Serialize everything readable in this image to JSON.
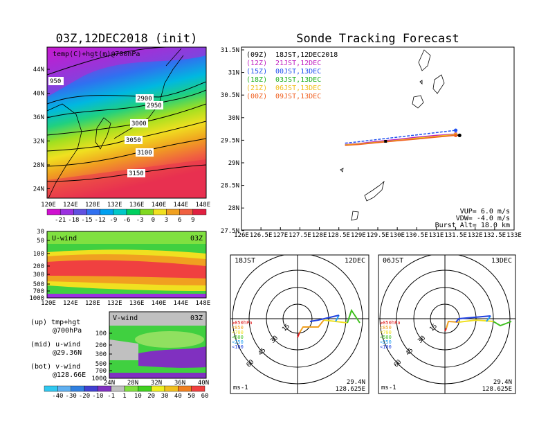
{
  "left": {
    "title": "03Z,12DEC2018 (init)",
    "map_label": "temp(C)+hgt(m)@700hPa",
    "lat_ticks": [
      "44N",
      "40N",
      "36N",
      "32N",
      "28N",
      "24N"
    ],
    "lon_ticks": [
      "120E",
      "124E",
      "128E",
      "132E",
      "136E",
      "140E",
      "144E",
      "148E"
    ],
    "contour_labels": [
      "950",
      "2900",
      "2950",
      "3000",
      "3050",
      "3100",
      "3150"
    ],
    "temp_colorbar": [
      "-21",
      "-18",
      "-15",
      "-12",
      "-9",
      "-6",
      "-3",
      "0",
      "3",
      "6",
      "9"
    ],
    "uwind_label": "U-wind",
    "uwind_time": "03Z",
    "pres_ticks": [
      "30",
      "50",
      "100",
      "200",
      "300",
      "500",
      "700",
      "1000"
    ],
    "vwind_label": "V-wind",
    "vwind_time": "03Z",
    "vwind_pres_ticks": [
      "100",
      "200",
      "300",
      "500",
      "700",
      "1000"
    ],
    "lat_axis_ticks": [
      "24N",
      "28N",
      "32N",
      "36N",
      "40N"
    ],
    "wind_colorbar": [
      "-40",
      "-30",
      "-20",
      "-10",
      "-1",
      "1",
      "10",
      "20",
      "30",
      "40",
      "50",
      "60"
    ],
    "legend": {
      "up_1": "(up) tmp+hgt",
      "up_2": "@700hPa",
      "mid_1": "(mid) u-wind",
      "mid_2": "@29.36N",
      "bot_1": "(bot) v-wind",
      "bot_2": "@128.66E"
    },
    "colors": {
      "colorbar_temp": [
        "#d010d0",
        "#9b30e0",
        "#6050e0",
        "#3070f0",
        "#00a0f0",
        "#00c8c8",
        "#00d060",
        "#80d820",
        "#f0e020",
        "#f0a020",
        "#f06040",
        "#e02040"
      ],
      "colorbar_wind": [
        "#30c8f0",
        "#60b0f0",
        "#3080e0",
        "#4040d0",
        "#8030c0",
        "#c0c0c0",
        "#80e040",
        "#40d020",
        "#f0f020",
        "#f0c020",
        "#f08020",
        "#f04040"
      ]
    }
  },
  "right": {
    "title": "Sonde Tracking Forecast",
    "runs": [
      {
        "tag": "(09Z)",
        "text": "18JST,12DEC2018",
        "color": "#000000"
      },
      {
        "tag": "(12Z)",
        "text": "21JST,12DEC",
        "color": "#c020c0"
      },
      {
        "tag": "(15Z)",
        "text": "00JST,13DEC",
        "color": "#2050f0"
      },
      {
        "tag": "(18Z)",
        "text": "03JST,13DEC",
        "color": "#20b020"
      },
      {
        "tag": "(21Z)",
        "text": "06JST,13DEC",
        "color": "#f0c020"
      },
      {
        "tag": "(00Z)",
        "text": "09JST,13DEC",
        "color": "#f06020"
      }
    ],
    "lat_ticks": [
      "31.5N",
      "31N",
      "30.5N",
      "30N",
      "29.5N",
      "29N",
      "28.5N",
      "28N",
      "27.5N"
    ],
    "lon_ticks": [
      "126E",
      "126.5E",
      "127E",
      "127.5E",
      "128E",
      "128.5E",
      "129E",
      "129.5E",
      "130E",
      "130.5E",
      "131E",
      "131.5E",
      "132E",
      "132.5E",
      "133E"
    ],
    "vup": "VUP= 6.0 m/s",
    "vdw": "VDW= -4.0 m/s",
    "burst": "Burst Alt= 18.0 km"
  },
  "hodo1": {
    "time": "18JST",
    "date": "12DEC",
    "lat": "29.4N",
    "lon": "128.625E",
    "unit": "ms-1",
    "ring_labels": [
      "15",
      "30",
      "45",
      "60"
    ]
  },
  "hodo2": {
    "time": "06JST",
    "date": "13DEC",
    "lat": "29.4N",
    "lon": "128.625E",
    "unit": "ms-1",
    "ring_labels": [
      "15",
      "30",
      "45",
      "60"
    ]
  },
  "hodo_legend": [
    {
      "text": "≥850hPa",
      "color": "#e02020"
    },
    {
      "text": "<850",
      "color": "#f0a020"
    },
    {
      "text": "<700",
      "color": "#f0e020"
    },
    {
      "text": "<500",
      "color": "#40c020"
    },
    {
      "text": "<250",
      "color": "#20a0f0"
    },
    {
      "text": "<100",
      "color": "#2040e0"
    }
  ],
  "chart_data": [
    {
      "type": "heatmap",
      "title": "03Z,12DEC2018 (init)",
      "subtitle": "temp(C)+hgt(m)@700hPa",
      "x_range": [
        "120E",
        "148E"
      ],
      "y_range": [
        "22N",
        "47N"
      ],
      "contours": [
        950,
        2900,
        2950,
        3000,
        3050,
        3100,
        3150
      ],
      "colorbar": [
        -21,
        -18,
        -15,
        -12,
        -9,
        -6,
        -3,
        0,
        3,
        6,
        9
      ]
    },
    {
      "type": "heatmap",
      "title": "U-wind",
      "x_range": [
        "120E",
        "148E"
      ],
      "y_ticks": [
        30,
        50,
        100,
        200,
        300,
        500,
        700,
        1000
      ]
    },
    {
      "type": "heatmap",
      "title": "V-wind",
      "x_range": [
        "24N",
        "40N"
      ],
      "y_ticks": [
        100,
        200,
        300,
        500,
        700,
        1000
      ],
      "colorbar": [
        -40,
        -30,
        -20,
        -10,
        -1,
        1,
        10,
        20,
        30,
        40,
        50,
        60
      ]
    },
    {
      "type": "line",
      "title": "Sonde Tracking Forecast",
      "x_range": [
        126,
        133
      ],
      "y_range": [
        27.5,
        31.5
      ],
      "series": [
        {
          "name": "(09Z) 18JST,12DEC2018",
          "x": [
            128.66,
            129.0,
            129.5,
            130.0,
            130.5,
            131.0,
            131.5,
            131.6
          ],
          "y": [
            29.36,
            29.38,
            29.42,
            29.46,
            29.5,
            29.54,
            29.58,
            29.57
          ]
        },
        {
          "name": "(12Z) 21JST,12DEC",
          "x": [
            128.66,
            129.0,
            129.5,
            130.0,
            130.5,
            131.0,
            131.5
          ],
          "y": [
            29.37,
            29.39,
            29.44,
            29.48,
            29.53,
            29.57,
            29.6
          ]
        },
        {
          "name": "(15Z) 00JST,13DEC",
          "x": [
            128.66,
            129.0,
            129.5,
            130.0,
            130.5,
            131.0,
            131.5
          ],
          "y": [
            29.4,
            29.43,
            29.48,
            29.53,
            29.58,
            29.63,
            29.68
          ]
        },
        {
          "name": "(18Z) 03JST,13DEC",
          "x": [
            128.66,
            129.0,
            129.5,
            130.0,
            130.5,
            131.0,
            131.5
          ],
          "y": [
            29.36,
            29.38,
            29.42,
            29.46,
            29.5,
            29.54,
            29.58
          ]
        },
        {
          "name": "(21Z) 06JST,13DEC",
          "x": [
            128.66,
            129.0,
            129.5,
            130.0,
            130.5,
            131.0,
            131.5
          ],
          "y": [
            29.36,
            29.38,
            29.42,
            29.46,
            29.51,
            29.55,
            29.59
          ]
        },
        {
          "name": "(00Z) 09JST,13DEC",
          "x": [
            128.66,
            129.0,
            129.5,
            130.0,
            130.5,
            131.0,
            131.5
          ],
          "y": [
            29.35,
            29.37,
            29.41,
            29.45,
            29.49,
            29.53,
            29.57
          ]
        }
      ]
    }
  ]
}
